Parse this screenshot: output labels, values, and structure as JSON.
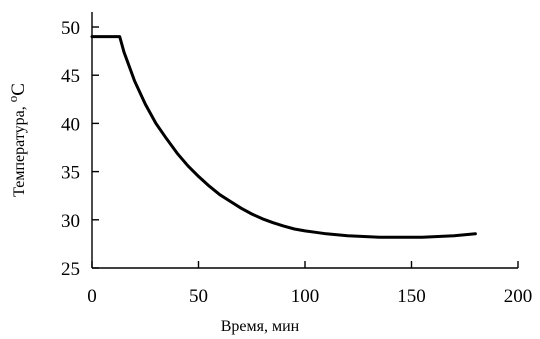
{
  "chart_data": {
    "type": "line",
    "xlabel": "Время, мин",
    "ylabel": "Температура, ",
    "ylabel_unit_sup": "o",
    "ylabel_unit": "C",
    "xlim": [
      0,
      200
    ],
    "ylim": [
      25,
      50
    ],
    "xticks": [
      0,
      50,
      100,
      150,
      200
    ],
    "yticks": [
      25,
      30,
      35,
      40,
      45,
      50
    ],
    "grid": false,
    "series": [
      {
        "color": "#000000",
        "x": [
          0,
          5,
          10,
          13,
          15,
          20,
          25,
          30,
          35,
          40,
          45,
          50,
          55,
          60,
          65,
          70,
          75,
          80,
          85,
          90,
          95,
          100,
          105,
          110,
          115,
          120,
          125,
          130,
          135,
          140,
          145,
          150,
          155,
          160,
          165,
          170,
          175,
          180
        ],
        "values": [
          49,
          49,
          49,
          49,
          47.4,
          44.4,
          42.0,
          40.0,
          38.4,
          36.9,
          35.6,
          34.5,
          33.5,
          32.6,
          31.9,
          31.2,
          30.6,
          30.1,
          29.7,
          29.35,
          29.05,
          28.85,
          28.7,
          28.55,
          28.45,
          28.35,
          28.3,
          28.25,
          28.2,
          28.2,
          28.2,
          28.2,
          28.2,
          28.25,
          28.3,
          28.35,
          28.45,
          28.55
        ]
      }
    ]
  }
}
